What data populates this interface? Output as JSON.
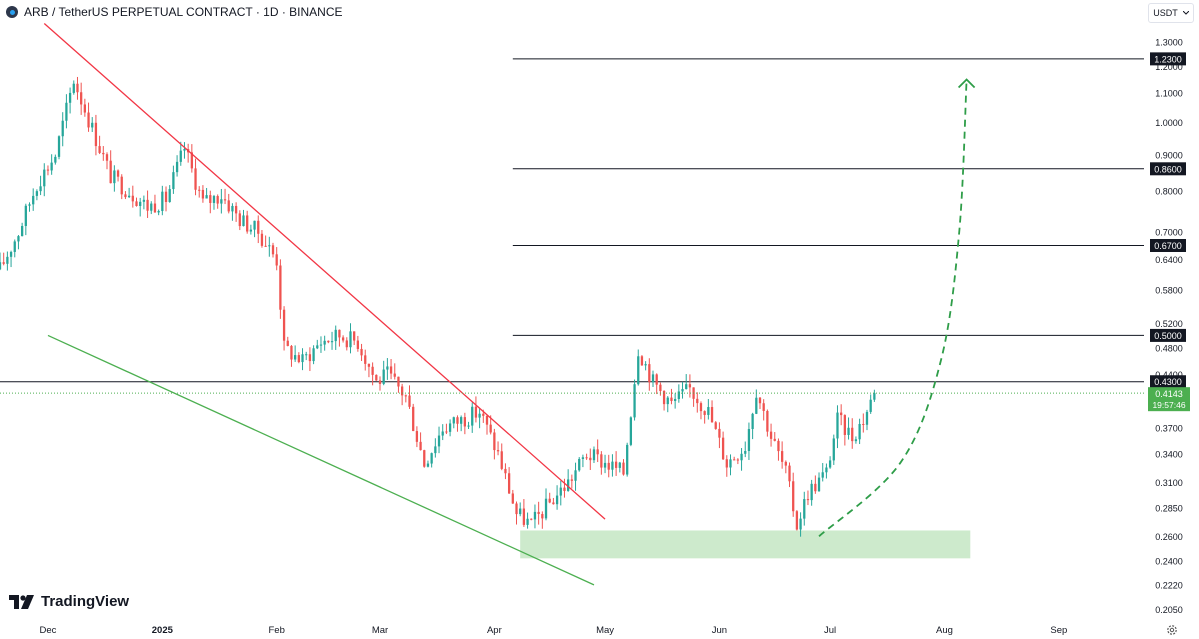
{
  "header": {
    "symbol_title": "ARB / TetherUS PERPETUAL CONTRACT · 1D · BINANCE",
    "logo_icon": "arbitrum-logo-icon"
  },
  "currency_selector": {
    "label": "USDT",
    "icon": "chevron-down-icon"
  },
  "branding": {
    "name": "TradingView",
    "icon": "tradingview-logo-icon"
  },
  "settings": {
    "icon": "gear-icon"
  },
  "colors": {
    "up": "#26a69a",
    "down": "#ef5350",
    "resistance_trendline": "#f23645",
    "support_trendline": "#4caf50",
    "demand_zone": "#b2dfb0",
    "projection_arrow": "#2e9d48",
    "level_line": "#131722",
    "current_price_bg": "#4caf50"
  },
  "chart_data": {
    "type": "candlestick",
    "title": "ARB / TetherUS PERPETUAL CONTRACT · 1D · BINANCE",
    "interval": "1D",
    "y_axis": {
      "scale": "log",
      "range": [
        0.198,
        1.36
      ],
      "position": "right",
      "tick_labels": [
        "1.3000",
        "1.2000",
        "1.1000",
        "1.0000",
        "0.9000",
        "0.8000",
        "0.7000",
        "0.6400",
        "0.5800",
        "0.5200",
        "0.4800",
        "0.4400",
        "0.3700",
        "0.3400",
        "0.3100",
        "0.2850",
        "0.2600",
        "0.2400",
        "0.2220",
        "0.2050"
      ]
    },
    "x_axis": {
      "range": [
        "2024-11-18",
        "2025-09-23"
      ],
      "tick_labels": [
        {
          "label": "Dec",
          "date": "2024-12-01"
        },
        {
          "label": "2025",
          "date": "2025-01-01",
          "bold": true
        },
        {
          "label": "Feb",
          "date": "2025-02-01"
        },
        {
          "label": "Mar",
          "date": "2025-03-01"
        },
        {
          "label": "Apr",
          "date": "2025-04-01"
        },
        {
          "label": "May",
          "date": "2025-05-01"
        },
        {
          "label": "Jun",
          "date": "2025-06-01"
        },
        {
          "label": "Jul",
          "date": "2025-07-01"
        },
        {
          "label": "Aug",
          "date": "2025-08-01"
        },
        {
          "label": "Sep",
          "date": "2025-09-01"
        }
      ]
    },
    "price_path": [
      [
        "2024-11-18",
        0.62
      ],
      [
        "2024-11-23",
        0.7
      ],
      [
        "2024-11-28",
        0.82
      ],
      [
        "2024-12-03",
        0.9
      ],
      [
        "2024-12-08",
        1.15
      ],
      [
        "2024-12-13",
        0.98
      ],
      [
        "2024-12-18",
        0.84
      ],
      [
        "2024-12-23",
        0.8
      ],
      [
        "2024-12-28",
        0.76
      ],
      [
        "2025-01-02",
        0.78
      ],
      [
        "2025-01-07",
        0.92
      ],
      [
        "2025-01-12",
        0.77
      ],
      [
        "2025-01-17",
        0.79
      ],
      [
        "2025-01-22",
        0.73
      ],
      [
        "2025-01-27",
        0.7
      ],
      [
        "2025-02-01",
        0.64
      ],
      [
        "2025-02-03",
        0.48
      ],
      [
        "2025-02-08",
        0.46
      ],
      [
        "2025-02-13",
        0.49
      ],
      [
        "2025-02-18",
        0.5
      ],
      [
        "2025-02-23",
        0.49
      ],
      [
        "2025-02-28",
        0.43
      ],
      [
        "2025-03-03",
        0.44
      ],
      [
        "2025-03-08",
        0.41
      ],
      [
        "2025-03-13",
        0.33
      ],
      [
        "2025-03-18",
        0.37
      ],
      [
        "2025-03-23",
        0.38
      ],
      [
        "2025-03-28",
        0.39
      ],
      [
        "2025-04-02",
        0.34
      ],
      [
        "2025-04-07",
        0.28
      ],
      [
        "2025-04-11",
        0.27
      ],
      [
        "2025-04-16",
        0.29
      ],
      [
        "2025-04-21",
        0.31
      ],
      [
        "2025-04-26",
        0.34
      ],
      [
        "2025-05-01",
        0.33
      ],
      [
        "2025-05-06",
        0.32
      ],
      [
        "2025-05-10",
        0.48
      ],
      [
        "2025-05-14",
        0.43
      ],
      [
        "2025-05-19",
        0.4
      ],
      [
        "2025-05-24",
        0.42
      ],
      [
        "2025-05-29",
        0.39
      ],
      [
        "2025-06-03",
        0.33
      ],
      [
        "2025-06-08",
        0.35
      ],
      [
        "2025-06-11",
        0.42
      ],
      [
        "2025-06-15",
        0.36
      ],
      [
        "2025-06-19",
        0.32
      ],
      [
        "2025-06-22",
        0.27
      ],
      [
        "2025-06-25",
        0.3
      ],
      [
        "2025-06-30",
        0.32
      ],
      [
        "2025-07-03",
        0.38
      ],
      [
        "2025-07-07",
        0.36
      ],
      [
        "2025-07-10",
        0.38
      ],
      [
        "2025-07-13",
        0.4143
      ]
    ],
    "resistance_trendline": {
      "start": [
        "2024-11-30",
        1.38
      ],
      "end": [
        "2025-05-01",
        0.275
      ]
    },
    "support_trendline": {
      "start": [
        "2024-12-01",
        0.5
      ],
      "end": [
        "2025-04-28",
        0.222
      ]
    },
    "demand_zone": {
      "price_range": [
        0.242,
        0.265
      ],
      "date_range": [
        "2025-04-08",
        "2025-08-08"
      ]
    },
    "horizontal_levels": [
      {
        "price": 1.23,
        "label": "1.2300",
        "from": "2025-04-06"
      },
      {
        "price": 0.86,
        "label": "0.8600",
        "from": "2025-04-06"
      },
      {
        "price": 0.67,
        "label": "0.6700",
        "from": "2025-04-06"
      },
      {
        "price": 0.5,
        "label": "0.5000",
        "from": "2025-04-06"
      },
      {
        "price": 0.43,
        "label": "0.4300",
        "from": "2024-11-18"
      }
    ],
    "current_price": {
      "price": 0.4143,
      "label": "0.4143",
      "countdown": "19:57:46"
    },
    "projection": {
      "style": "dashed-arrow",
      "points": [
        [
          "2025-06-28",
          0.26
        ],
        [
          "2025-07-20",
          0.33
        ],
        [
          "2025-07-31",
          0.46
        ],
        [
          "2025-08-05",
          0.7
        ],
        [
          "2025-08-07",
          1.15
        ]
      ]
    }
  }
}
